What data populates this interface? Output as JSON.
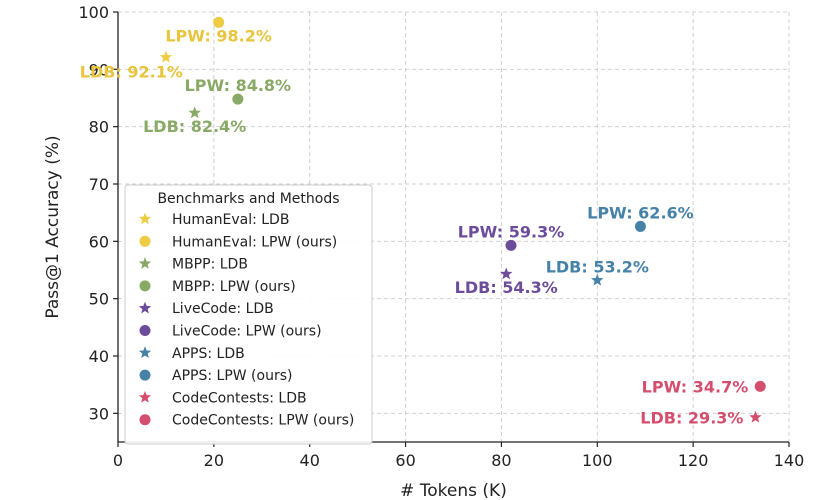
{
  "chart_data": {
    "type": "scatter",
    "title": "",
    "xlabel": "# Tokens (K)",
    "ylabel": "Pass@1 Accuracy (%)",
    "xlim": [
      0,
      140
    ],
    "ylim": [
      25,
      100
    ],
    "xticks": [
      0,
      20,
      40,
      60,
      80,
      100,
      120,
      140
    ],
    "yticks": [
      30,
      40,
      50,
      60,
      70,
      80,
      90,
      100
    ],
    "grid": true,
    "legend": {
      "title": "Benchmarks and Methods",
      "placement": "lower-left",
      "entries": [
        {
          "label": "HumanEval: LDB",
          "marker": "star",
          "color": "#EECC44"
        },
        {
          "label": "HumanEval: LPW (ours)",
          "marker": "circle",
          "color": "#EECC44"
        },
        {
          "label": "MBPP: LDB",
          "marker": "star",
          "color": "#88AA66"
        },
        {
          "label": "MBPP: LPW (ours)",
          "marker": "circle",
          "color": "#88AA66"
        },
        {
          "label": "LiveCode: LDB",
          "marker": "star",
          "color": "#6E4C9C"
        },
        {
          "label": "LiveCode: LPW (ours)",
          "marker": "circle",
          "color": "#6E4C9C"
        },
        {
          "label": "APPS: LDB",
          "marker": "star",
          "color": "#4682A8"
        },
        {
          "label": "APPS: LPW (ours)",
          "marker": "circle",
          "color": "#4682A8"
        },
        {
          "label": "CodeContests: LDB",
          "marker": "star",
          "color": "#D44E6E"
        },
        {
          "label": "CodeContests: LPW (ours)",
          "marker": "circle",
          "color": "#D44E6E"
        }
      ]
    },
    "series": [
      {
        "benchmark": "HumanEval",
        "method": "LDB",
        "marker": "star",
        "color": "#EECC44",
        "label_color": "#E8C53C",
        "x": 10,
        "y": 92.1,
        "label": "LDB: 92.1%",
        "label_anchor": "end-below"
      },
      {
        "benchmark": "HumanEval",
        "method": "LPW",
        "marker": "circle",
        "color": "#EECC44",
        "label_color": "#E8C53C",
        "x": 21,
        "y": 98.2,
        "label": "LPW: 98.2%",
        "label_anchor": "center-below"
      },
      {
        "benchmark": "MBPP",
        "method": "LDB",
        "marker": "star",
        "color": "#88AA66",
        "label_color": "#88AA66",
        "x": 16,
        "y": 82.4,
        "label": "LDB: 82.4%",
        "label_anchor": "center-below"
      },
      {
        "benchmark": "MBPP",
        "method": "LPW",
        "marker": "circle",
        "color": "#88AA66",
        "label_color": "#88AA66",
        "x": 25,
        "y": 84.8,
        "label": "LPW: 84.8%",
        "label_anchor": "center-above"
      },
      {
        "benchmark": "LiveCode",
        "method": "LDB",
        "marker": "star",
        "color": "#6E4C9C",
        "label_color": "#6E4C9C",
        "x": 81,
        "y": 54.3,
        "label": "LDB: 54.3%",
        "label_anchor": "center-below"
      },
      {
        "benchmark": "LiveCode",
        "method": "LPW",
        "marker": "circle",
        "color": "#6E4C9C",
        "label_color": "#6E4C9C",
        "x": 82,
        "y": 59.3,
        "label": "LPW: 59.3%",
        "label_anchor": "center-above"
      },
      {
        "benchmark": "APPS",
        "method": "LDB",
        "marker": "star",
        "color": "#4682A8",
        "label_color": "#4682A8",
        "x": 100,
        "y": 53.2,
        "label": "LDB: 53.2%",
        "label_anchor": "center-above"
      },
      {
        "benchmark": "APPS",
        "method": "LPW",
        "marker": "circle",
        "color": "#4682A8",
        "label_color": "#4682A8",
        "x": 109,
        "y": 62.6,
        "label": "LPW: 62.6%",
        "label_anchor": "center-above"
      },
      {
        "benchmark": "CodeContests",
        "method": "LDB",
        "marker": "star",
        "color": "#D44E6E",
        "label_color": "#D44E6E",
        "x": 133,
        "y": 29.3,
        "label": "LDB: 29.3%",
        "label_anchor": "left"
      },
      {
        "benchmark": "CodeContests",
        "method": "LPW",
        "marker": "circle",
        "color": "#D44E6E",
        "label_color": "#D44E6E",
        "x": 134,
        "y": 34.7,
        "label": "LPW: 34.7%",
        "label_anchor": "left"
      }
    ]
  }
}
